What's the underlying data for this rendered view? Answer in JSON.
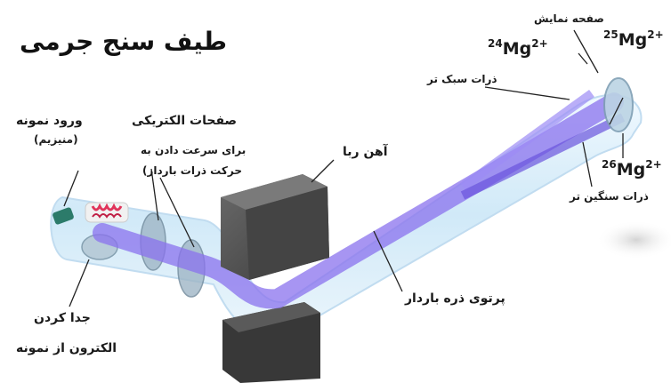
{
  "title": "طیف سنج جرمی",
  "labels": {
    "sample_entry_line1": "ورود نمونه",
    "sample_entry_line2": "(منیزیم)",
    "electric_plates_title": "صفحات الکتریکی",
    "electric_plates_desc1": "برای سرعت دادن به",
    "electric_plates_desc2": "حرکت ذرات باردار)",
    "magnet": "آهن ربا",
    "light_particles": "ذرات سبک تر",
    "display_screen": "صفحه نمایش",
    "heavy_particles": "ذرات سنگین تر",
    "charged_beam": "پرتوی ذره باردار",
    "electron_sep_line1": "جدا کردن",
    "electron_sep_line2": "الکترون از نمونه"
  },
  "ions": [
    {
      "mass": "24",
      "symbol": "Mg",
      "charge": "2+"
    },
    {
      "mass": "25",
      "symbol": "Mg",
      "charge": "2+"
    },
    {
      "mass": "26",
      "symbol": "Mg",
      "charge": "2+"
    }
  ],
  "colors": {
    "beam": "#7b62e6",
    "tube": "#cfe8f8",
    "magnet": "#4a4a4a",
    "text": "#1a1a1a"
  }
}
